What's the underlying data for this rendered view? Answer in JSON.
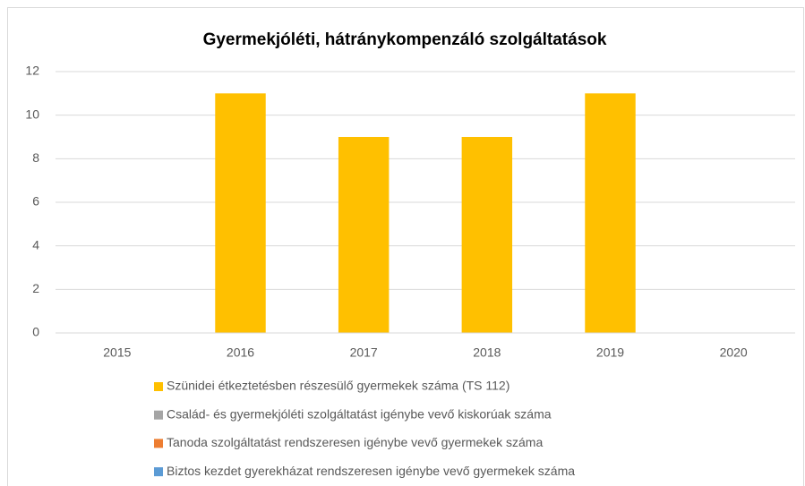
{
  "chart_data": {
    "type": "bar",
    "stacked": true,
    "title": "Gyermekjóléti, hátránykompenzáló szolgáltatások",
    "categories": [
      "2015",
      "2016",
      "2017",
      "2018",
      "2019",
      "2020"
    ],
    "series": [
      {
        "name": "Szünidei étkeztetésben részesülő gyermekek száma (TS 112)",
        "color": "#FFC000",
        "values": [
          null,
          11,
          9,
          9,
          11,
          null
        ]
      },
      {
        "name": "Család- és gyermekjóléti szolgáltatást igénybe vevő kiskorúak száma",
        "color": "#A5A5A5",
        "values": [
          null,
          null,
          null,
          null,
          null,
          null
        ]
      },
      {
        "name": "Tanoda szolgáltatást rendszeresen igénybe vevő gyermekek száma",
        "color": "#ED7D31",
        "values": [
          null,
          null,
          null,
          null,
          null,
          null
        ]
      },
      {
        "name": "Biztos kezdet gyerekházat rendszeresen igénybe vevő gyermekek száma",
        "color": "#5B9BD5",
        "values": [
          null,
          null,
          null,
          null,
          null,
          null
        ]
      }
    ],
    "ylim": [
      0,
      12
    ],
    "yticks": [
      0,
      2,
      4,
      6,
      8,
      10,
      12
    ],
    "grid": true,
    "legend": "bottom"
  }
}
